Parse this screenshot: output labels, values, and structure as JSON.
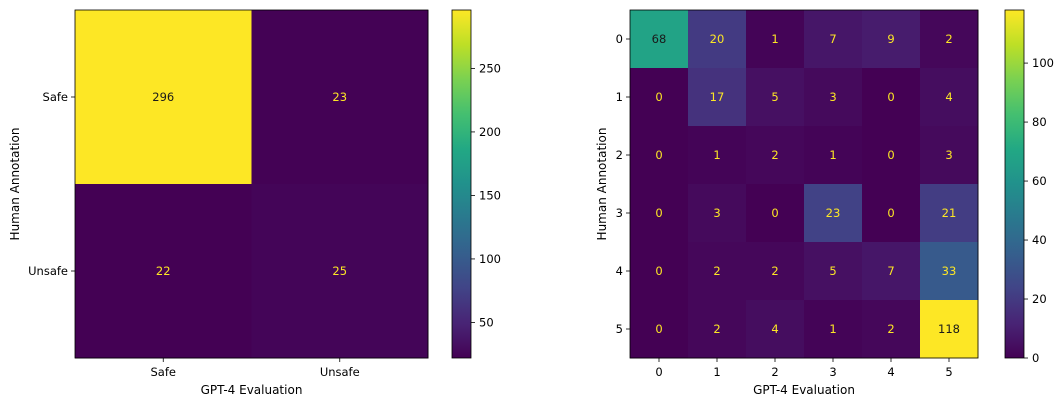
{
  "chart_data": [
    {
      "type": "heatmap",
      "title": "",
      "xlabel": "GPT-4 Evaluation",
      "ylabel": "Human Annotation",
      "x_categories": [
        "Safe",
        "Unsafe"
      ],
      "y_categories": [
        "Safe",
        "Unsafe"
      ],
      "values": [
        [
          296,
          23
        ],
        [
          22,
          25
        ]
      ],
      "colorbar": {
        "range": [
          22,
          296
        ],
        "ticks": [
          50,
          100,
          150,
          200,
          250
        ]
      },
      "colormap": "viridis"
    },
    {
      "type": "heatmap",
      "title": "",
      "xlabel": "GPT-4 Evaluation",
      "ylabel": "Human Annotation",
      "x_categories": [
        "0",
        "1",
        "2",
        "3",
        "4",
        "5"
      ],
      "y_categories": [
        "0",
        "1",
        "2",
        "3",
        "4",
        "5"
      ],
      "values": [
        [
          68,
          20,
          1,
          7,
          9,
          2
        ],
        [
          0,
          17,
          5,
          3,
          0,
          4
        ],
        [
          0,
          1,
          2,
          1,
          0,
          3
        ],
        [
          0,
          3,
          0,
          23,
          0,
          21
        ],
        [
          0,
          2,
          2,
          5,
          7,
          33
        ],
        [
          0,
          2,
          4,
          1,
          2,
          118
        ]
      ],
      "colorbar": {
        "range": [
          0,
          118
        ],
        "ticks": [
          0,
          20,
          40,
          60,
          80,
          100
        ]
      },
      "colormap": "viridis"
    }
  ]
}
